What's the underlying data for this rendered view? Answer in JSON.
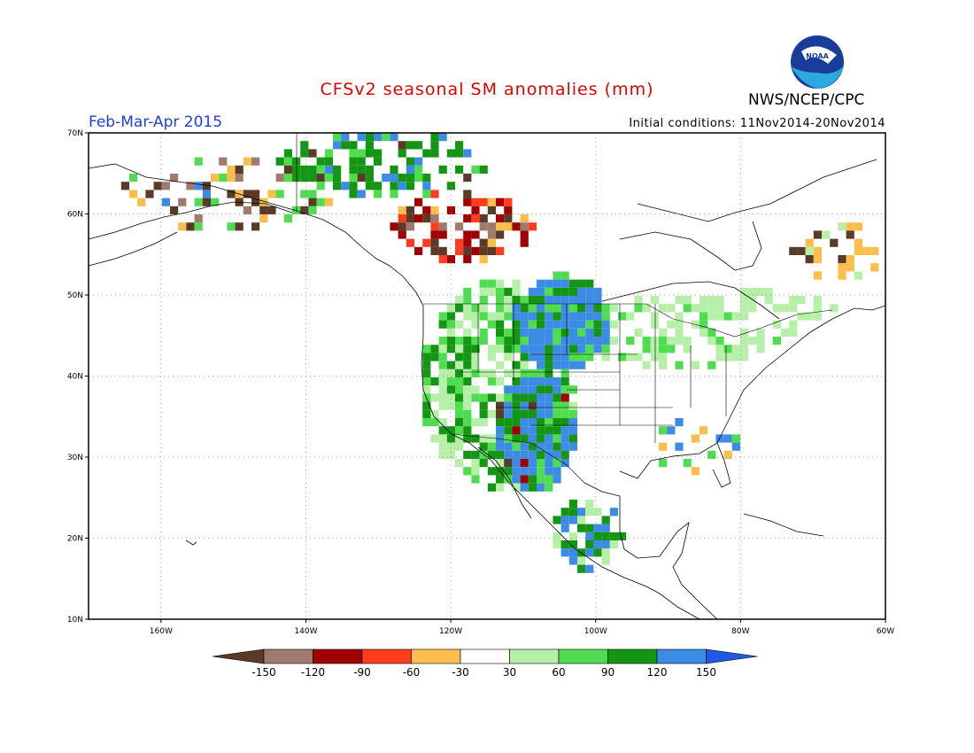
{
  "title": "CFSv2 seasonal SM anomalies (mm)",
  "agency": "NWS/NCEP/CPC",
  "logo_text": "NOAA",
  "season": "Feb-Mar-Apr 2015",
  "initial_conditions": "Initial conditions: 11Nov2014-20Nov2014",
  "lat_labels": [
    "70N",
    "60N",
    "50N",
    "40N",
    "30N",
    "20N",
    "10N"
  ],
  "lon_labels": [
    "160W",
    "140W",
    "120W",
    "100W",
    "80W",
    "60W"
  ],
  "colorbar": {
    "labels": [
      "-150",
      "-120",
      "-90",
      "-60",
      "-30",
      "30",
      "60",
      "90",
      "120",
      "150"
    ],
    "colors": [
      "#5a3a28",
      "#a07a6c",
      "#a00000",
      "#ff3c1e",
      "#fbbd4c",
      "#ffffff",
      "#b6f0a8",
      "#50dc50",
      "#149614",
      "#3c8ce6",
      "#1e5ae6"
    ]
  }
}
